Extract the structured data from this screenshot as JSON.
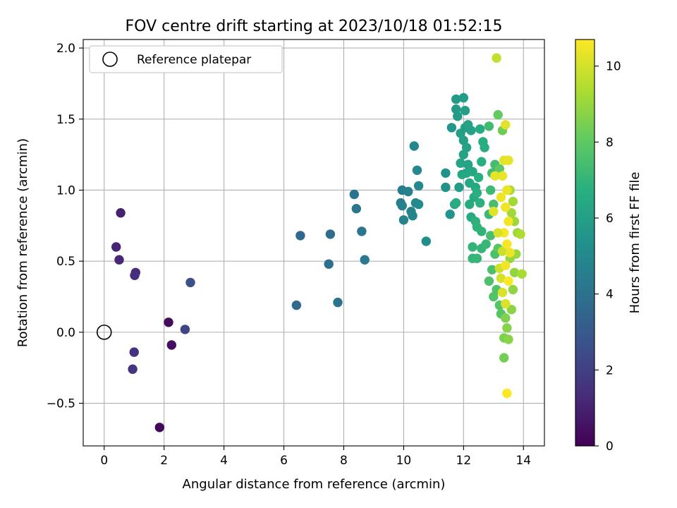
{
  "chart_data": {
    "type": "scatter",
    "title": "FOV centre drift starting at 2023/10/18 01:52:15",
    "xlabel": "Angular distance from reference (arcmin)",
    "ylabel": "Rotation from reference (arcmin)",
    "xlim": [
      -0.7,
      14.7
    ],
    "ylim": [
      -0.8,
      2.06
    ],
    "xticks": [
      0,
      2,
      4,
      6,
      8,
      10,
      12,
      14
    ],
    "xtick_labels": [
      "0",
      "2",
      "4",
      "6",
      "8",
      "10",
      "12",
      "14"
    ],
    "yticks": [
      -0.5,
      0.0,
      0.5,
      1.0,
      1.5,
      2.0
    ],
    "ytick_labels": [
      "−0.5",
      "0.0",
      "0.5",
      "1.0",
      "1.5",
      "2.0"
    ],
    "grid": true,
    "legend": {
      "position": "top-left",
      "entries": [
        "Reference platepar"
      ]
    },
    "colorbar": {
      "label": "Hours from first FF file",
      "colormap": "viridis",
      "range": [
        0,
        10.7
      ],
      "ticks": [
        0,
        2,
        4,
        6,
        8,
        10
      ],
      "tick_labels": [
        "0",
        "2",
        "4",
        "6",
        "8",
        "10"
      ]
    },
    "reference_point": {
      "x": 0,
      "y": 0
    },
    "points": [
      [
        1.85,
        -0.67,
        0.2
      ],
      [
        2.15,
        0.07,
        0.3
      ],
      [
        2.25,
        -0.09,
        0.4
      ],
      [
        0.55,
        0.84,
        1.0
      ],
      [
        0.4,
        0.6,
        1.1
      ],
      [
        0.5,
        0.51,
        1.2
      ],
      [
        1.05,
        0.42,
        1.3
      ],
      [
        1.02,
        0.4,
        1.4
      ],
      [
        1.0,
        -0.14,
        1.5
      ],
      [
        0.95,
        -0.26,
        1.6
      ],
      [
        2.7,
        0.02,
        2.2
      ],
      [
        2.88,
        0.35,
        2.6
      ],
      [
        6.55,
        0.68,
        3.6
      ],
      [
        6.42,
        0.19,
        3.7
      ],
      [
        7.55,
        0.69,
        3.8
      ],
      [
        7.5,
        0.48,
        3.9
      ],
      [
        7.8,
        0.21,
        4.0
      ],
      [
        8.35,
        0.97,
        4.1
      ],
      [
        8.42,
        0.87,
        4.15
      ],
      [
        8.6,
        0.71,
        4.2
      ],
      [
        8.7,
        0.51,
        4.3
      ],
      [
        9.95,
        1.0,
        4.5
      ],
      [
        9.9,
        0.91,
        4.55
      ],
      [
        9.95,
        0.89,
        4.6
      ],
      [
        10.15,
        0.99,
        4.65
      ],
      [
        10.0,
        0.79,
        4.7
      ],
      [
        10.25,
        0.85,
        4.75
      ],
      [
        10.3,
        0.82,
        4.8
      ],
      [
        10.35,
        1.31,
        4.9
      ],
      [
        10.45,
        1.14,
        4.95
      ],
      [
        10.5,
        1.03,
        5.0
      ],
      [
        10.4,
        0.91,
        5.05
      ],
      [
        10.5,
        0.9,
        5.1
      ],
      [
        10.75,
        0.64,
        5.2
      ],
      [
        11.4,
        1.12,
        5.4
      ],
      [
        11.4,
        1.02,
        5.45
      ],
      [
        11.55,
        0.83,
        5.5
      ],
      [
        11.6,
        1.44,
        5.6
      ],
      [
        11.75,
        1.64,
        5.7
      ],
      [
        11.75,
        1.57,
        5.75
      ],
      [
        11.8,
        1.52,
        5.8
      ],
      [
        11.85,
        1.02,
        5.85
      ],
      [
        12.0,
        1.65,
        5.9
      ],
      [
        12.05,
        1.56,
        5.95
      ],
      [
        11.9,
        1.4,
        6.0
      ],
      [
        12.05,
        1.44,
        6.0
      ],
      [
        12.0,
        1.35,
        6.05
      ],
      [
        12.1,
        1.3,
        6.1
      ],
      [
        12.15,
        1.46,
        6.1
      ],
      [
        12.25,
        1.42,
        6.15
      ],
      [
        12.0,
        1.25,
        6.2
      ],
      [
        12.15,
        1.18,
        6.2
      ],
      [
        11.9,
        1.19,
        6.25
      ],
      [
        12.1,
        1.12,
        6.3
      ],
      [
        11.95,
        1.11,
        6.3
      ],
      [
        12.3,
        1.13,
        6.35
      ],
      [
        12.2,
        1.05,
        6.4
      ],
      [
        12.4,
        1.02,
        6.4
      ],
      [
        12.35,
        0.95,
        6.45
      ],
      [
        12.2,
        0.9,
        6.5
      ],
      [
        12.25,
        0.81,
        6.5
      ],
      [
        11.7,
        0.9,
        6.5
      ],
      [
        11.75,
        0.91,
        6.55
      ],
      [
        12.55,
        1.43,
        6.55
      ],
      [
        12.65,
        1.34,
        6.6
      ],
      [
        12.7,
        1.3,
        6.65
      ],
      [
        12.6,
        1.2,
        6.7
      ],
      [
        12.5,
        1.09,
        6.7
      ],
      [
        12.45,
        0.98,
        6.75
      ],
      [
        12.55,
        0.91,
        6.8
      ],
      [
        12.4,
        0.78,
        6.8
      ],
      [
        12.45,
        0.74,
        6.85
      ],
      [
        12.6,
        0.71,
        6.9
      ],
      [
        12.3,
        0.6,
        6.95
      ],
      [
        12.6,
        0.59,
        7.0
      ],
      [
        12.3,
        0.52,
        7.0
      ],
      [
        12.45,
        0.52,
        7.05
      ],
      [
        12.75,
        0.62,
        7.1
      ],
      [
        12.85,
        0.83,
        7.15
      ],
      [
        12.9,
        1.0,
        7.2
      ],
      [
        12.85,
        1.45,
        7.3
      ],
      [
        12.95,
        1.12,
        7.35
      ],
      [
        13.05,
        1.18,
        7.4
      ],
      [
        13.0,
        0.9,
        7.45
      ],
      [
        12.9,
        0.68,
        7.5
      ],
      [
        13.05,
        0.55,
        7.55
      ],
      [
        12.95,
        0.44,
        7.6
      ],
      [
        12.85,
        0.36,
        7.6
      ],
      [
        13.1,
        0.3,
        7.7
      ],
      [
        13.0,
        0.25,
        7.75
      ],
      [
        13.2,
        0.19,
        7.8
      ],
      [
        13.25,
        0.13,
        7.85
      ],
      [
        13.15,
        0.59,
        7.9
      ],
      [
        13.2,
        1.15,
        8.0
      ],
      [
        13.15,
        1.53,
        8.1
      ],
      [
        13.3,
        1.42,
        8.3
      ],
      [
        13.35,
        -0.18,
        8.4
      ],
      [
        13.35,
        -0.04,
        8.5
      ],
      [
        13.4,
        0.1,
        8.6
      ],
      [
        13.45,
        0.03,
        8.7
      ],
      [
        13.5,
        -0.05,
        8.75
      ],
      [
        13.6,
        0.16,
        8.8
      ],
      [
        13.65,
        0.3,
        8.85
      ],
      [
        13.7,
        0.42,
        8.9
      ],
      [
        13.55,
        0.52,
        8.95
      ],
      [
        13.75,
        0.55,
        9.0
      ],
      [
        13.8,
        0.7,
        9.05
      ],
      [
        13.7,
        0.78,
        9.1
      ],
      [
        13.6,
        0.84,
        9.15
      ],
      [
        13.65,
        0.92,
        9.2
      ],
      [
        13.55,
        1.0,
        9.25
      ],
      [
        13.95,
        0.41,
        9.3
      ],
      [
        13.9,
        0.69,
        9.35
      ],
      [
        13.1,
        1.93,
        9.7
      ],
      [
        13.3,
        0.57,
        9.8
      ],
      [
        13.2,
        0.45,
        9.9
      ],
      [
        13.25,
        0.38,
        10.0
      ],
      [
        13.3,
        0.28,
        10.1
      ],
      [
        13.4,
        0.2,
        10.15
      ],
      [
        13.4,
        1.46,
        10.2
      ],
      [
        13.35,
        1.21,
        10.25
      ],
      [
        13.5,
        1.21,
        10.3
      ],
      [
        13.3,
        1.1,
        10.35
      ],
      [
        13.45,
        1.0,
        10.4
      ],
      [
        13.25,
        0.95,
        10.45
      ],
      [
        13.4,
        0.88,
        10.5
      ],
      [
        13.5,
        0.78,
        10.55
      ],
      [
        13.35,
        0.7,
        10.6
      ],
      [
        13.45,
        0.62,
        10.62
      ],
      [
        13.5,
        0.36,
        10.65
      ],
      [
        13.45,
        -0.43,
        10.68
      ],
      [
        13.05,
        1.1,
        10.3
      ],
      [
        13.0,
        0.85,
        10.2
      ],
      [
        13.15,
        0.7,
        10.1
      ],
      [
        13.55,
        0.56,
        10.4
      ],
      [
        13.4,
        0.47,
        10.5
      ]
    ]
  }
}
